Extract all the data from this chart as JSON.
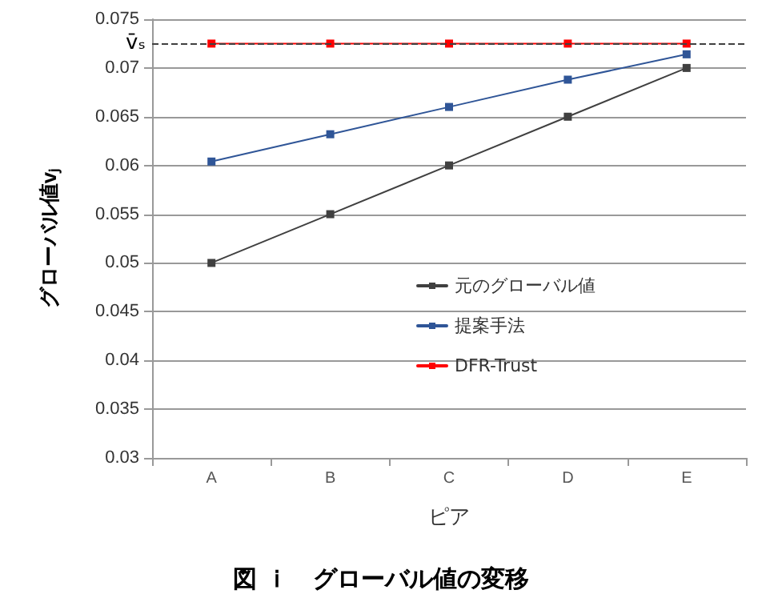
{
  "chart_data": {
    "type": "line",
    "title": "図 ｉ　グローバル値の変移",
    "xlabel": "ピア",
    "ylabel": "グローバル値vⱼ",
    "categories": [
      "A",
      "B",
      "C",
      "D",
      "E"
    ],
    "series": [
      {
        "name": "元のグローバル値",
        "color": "#404040",
        "values": [
          0.05,
          0.055,
          0.06,
          0.065,
          0.07
        ]
      },
      {
        "name": "提案手法",
        "color": "#2f5597",
        "values": [
          0.0604,
          0.0632,
          0.066,
          0.0688,
          0.0714
        ]
      },
      {
        "name": "DFR-Trust",
        "color": "#ff0000",
        "values": [
          0.0725,
          0.0725,
          0.0725,
          0.0725,
          0.0725
        ]
      }
    ],
    "ylim": [
      0.03,
      0.075
    ],
    "yticks": [
      0.03,
      0.035,
      0.04,
      0.045,
      0.05,
      0.055,
      0.06,
      0.065,
      0.07,
      0.075
    ],
    "ref_lines": [
      {
        "axis": "y",
        "value": 0.0725,
        "label": "v̄ₛ",
        "color": "#404040",
        "line_style": "dashed"
      }
    ],
    "grid": "y",
    "legend": "bottom",
    "marker": "square",
    "line_style": "solid"
  }
}
